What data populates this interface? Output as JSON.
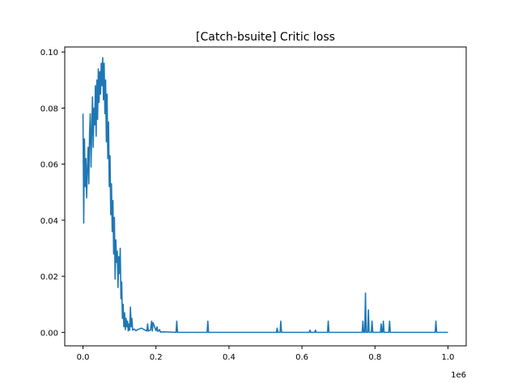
{
  "chart_data": {
    "type": "line",
    "title": "[Catch-bsuite] Critic loss",
    "xlabel": "",
    "ylabel": "",
    "x_offset_label": "1e6",
    "xlim": [
      -50000,
      1050000
    ],
    "ylim": [
      -0.0048,
      0.1018
    ],
    "x_ticks": [
      0,
      200000,
      400000,
      600000,
      800000,
      1000000
    ],
    "x_tick_labels": [
      "0.0",
      "0.2",
      "0.4",
      "0.6",
      "0.8",
      "1.0"
    ],
    "y_ticks": [
      0.0,
      0.02,
      0.04,
      0.06,
      0.08,
      0.1
    ],
    "y_tick_labels": [
      "0.00",
      "0.02",
      "0.04",
      "0.06",
      "0.08",
      "0.10"
    ],
    "grid": false,
    "legend": "none",
    "series": [
      {
        "color": "#1f77b4",
        "x": [
          0,
          2000,
          4000,
          6000,
          8000,
          10000,
          12000,
          14000,
          16000,
          18000,
          20000,
          22000,
          24000,
          26000,
          28000,
          30000,
          32000,
          34000,
          36000,
          38000,
          40000,
          42000,
          44000,
          46000,
          48000,
          50000,
          52000,
          54000,
          56000,
          58000,
          60000,
          62000,
          64000,
          66000,
          68000,
          70000,
          72000,
          74000,
          76000,
          78000,
          80000,
          82000,
          84000,
          86000,
          88000,
          90000,
          92000,
          94000,
          96000,
          98000,
          100000,
          102000,
          104000,
          106000,
          108000,
          110000,
          112000,
          114000,
          116000,
          118000,
          120000,
          122000,
          124000,
          126000,
          128000,
          130000,
          132000,
          134000,
          136000,
          140000,
          145000,
          150000,
          160000,
          175000,
          177000,
          179000,
          185000,
          188000,
          190000,
          192000,
          200000,
          203000,
          205000,
          210000,
          212000,
          220000,
          255000,
          257000,
          259000,
          340000,
          342000,
          344000,
          530000,
          532000,
          534000,
          540000,
          542000,
          544000,
          620000,
          622000,
          624000,
          635000,
          637000,
          639000,
          670000,
          672000,
          674000,
          765000,
          767000,
          769000,
          772000,
          774000,
          776000,
          780000,
          782000,
          784000,
          790000,
          792000,
          794000,
          815000,
          817000,
          819000,
          821000,
          823000,
          825000,
          838000,
          840000,
          842000,
          965000,
          967000,
          969000,
          1000000
        ],
        "y": [
          0.078,
          0.039,
          0.069,
          0.052,
          0.062,
          0.048,
          0.058,
          0.066,
          0.053,
          0.071,
          0.078,
          0.059,
          0.072,
          0.084,
          0.066,
          0.08,
          0.074,
          0.088,
          0.07,
          0.09,
          0.076,
          0.094,
          0.082,
          0.093,
          0.085,
          0.096,
          0.088,
          0.098,
          0.083,
          0.096,
          0.078,
          0.09,
          0.068,
          0.085,
          0.062,
          0.075,
          0.052,
          0.063,
          0.042,
          0.053,
          0.036,
          0.047,
          0.028,
          0.041,
          0.019,
          0.033,
          0.025,
          0.029,
          0.016,
          0.027,
          0.021,
          0.03,
          0.012,
          0.018,
          0.005,
          0.01,
          0.002,
          0.007,
          0.001,
          0.005,
          0.002,
          0.004,
          0.0005,
          0.003,
          0.0008,
          0.009,
          0.002,
          0.005,
          0.0008,
          0.0012,
          0.0006,
          0.001,
          0.0015,
          0.0005,
          0.003,
          0.0005,
          0.0008,
          0.004,
          0.0005,
          0.0035,
          0.0006,
          0.002,
          0.0003,
          0.001,
          0.0001,
          0.0002,
          0.0,
          0.004,
          0.0,
          0.0,
          0.004,
          0.0,
          0.0,
          0.0015,
          0.0,
          0.0,
          0.004,
          0.0,
          0.0,
          0.0008,
          0.0,
          0.0,
          0.0008,
          0.0,
          0.0,
          0.004,
          0.0,
          0.0,
          0.004,
          0.0,
          0.0,
          0.014,
          0.0,
          0.0,
          0.008,
          0.0,
          0.0,
          0.004,
          0.0,
          0.0,
          0.003,
          0.0,
          0.0,
          0.004,
          0.0,
          0.0,
          0.004,
          0.0,
          0.0,
          0.004,
          0.0,
          0.0
        ]
      }
    ]
  }
}
